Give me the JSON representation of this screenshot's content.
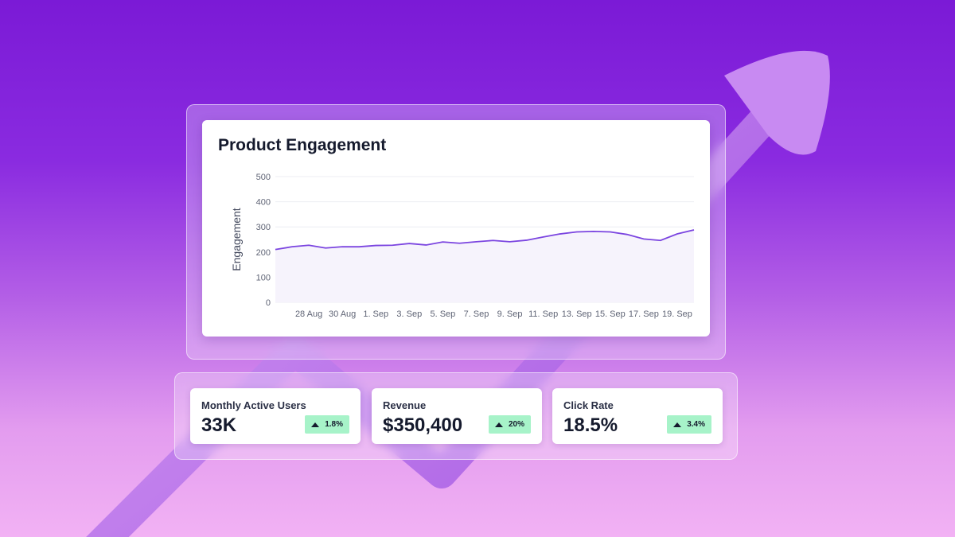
{
  "chart_data": {
    "type": "area",
    "title": "Product Engagement",
    "ylabel": "Engagement",
    "xlabel": "",
    "ylim": [
      0,
      500
    ],
    "yticks": [
      0,
      100,
      200,
      300,
      400,
      500
    ],
    "x": [
      "26 Aug",
      "27 Aug",
      "28 Aug",
      "29 Aug",
      "30 Aug",
      "31 Aug",
      "1. Sep",
      "2. Sep",
      "3. Sep",
      "4. Sep",
      "5. Sep",
      "6. Sep",
      "7. Sep",
      "8. Sep",
      "9. Sep",
      "10. Sep",
      "11. Sep",
      "12. Sep",
      "13. Sep",
      "14. Sep",
      "15. Sep",
      "16. Sep",
      "17. Sep",
      "18. Sep",
      "19. Sep",
      "20. Sep"
    ],
    "xtick_labels": [
      "28 Aug",
      "30 Aug",
      "1. Sep",
      "3. Sep",
      "5. Sep",
      "7. Sep",
      "9. Sep",
      "11. Sep",
      "13. Sep",
      "15. Sep",
      "17. Sep",
      "19. Sep"
    ],
    "values": [
      210,
      221,
      227,
      216,
      221,
      221,
      226,
      227,
      234,
      228,
      240,
      235,
      241,
      246,
      241,
      247,
      260,
      272,
      280,
      282,
      280,
      270,
      252,
      246,
      272,
      288
    ],
    "grid": true,
    "line_color": "#7b45e0"
  },
  "kpis": [
    {
      "label": "Monthly Active Users",
      "value": "33K",
      "change": "1.8%"
    },
    {
      "label": "Revenue",
      "value": "$350,400",
      "change": "20%"
    },
    {
      "label": "Click Rate",
      "value": "18.5%",
      "change": "3.4%"
    }
  ],
  "colors": {
    "badge": "#a7f3c9",
    "accent": "#7b45e0"
  }
}
